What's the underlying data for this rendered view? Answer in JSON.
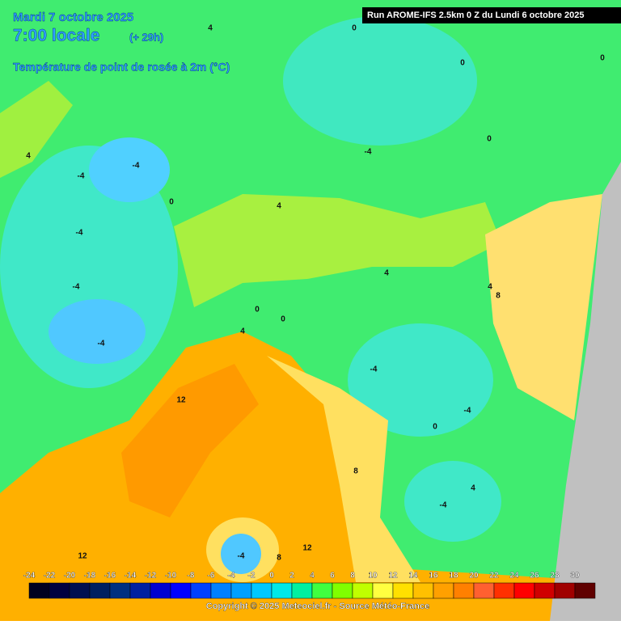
{
  "header": {
    "date": "Mardi 7 octobre 2025",
    "time": "7:00 locale",
    "lead": "(+ 29h)",
    "parameter": "Température de point de rosée à 2m (°C)",
    "run": "Run AROME-IFS 2.5km 0 Z du Lundi 6 octobre 2025"
  },
  "colorbar": {
    "ticks": [
      -24,
      -22,
      -20,
      -18,
      -16,
      -14,
      -12,
      -10,
      -8,
      -6,
      -4,
      -2,
      0,
      2,
      4,
      6,
      8,
      10,
      12,
      14,
      16,
      18,
      20,
      22,
      24,
      26,
      28,
      30
    ],
    "colors": [
      "#000020",
      "#000040",
      "#001050",
      "#002060",
      "#003080",
      "#0020a0",
      "#0000d0",
      "#0000ff",
      "#0040ff",
      "#0080ff",
      "#00a0ff",
      "#00c8ff",
      "#00e8e8",
      "#00f0a0",
      "#40ff40",
      "#80ff00",
      "#c0ff00",
      "#ffff40",
      "#ffe000",
      "#ffc000",
      "#ffa000",
      "#ff8000",
      "#ff6030",
      "#ff3000",
      "#ff0000",
      "#d00000",
      "#a00000",
      "#600000"
    ]
  },
  "contour_labels": [
    4,
    0,
    0,
    0,
    0,
    -4,
    -4,
    -4,
    0,
    4,
    4,
    -4,
    -4,
    -4,
    4,
    4,
    8,
    0,
    0,
    4,
    -4,
    12,
    -4,
    0,
    8,
    4,
    -4,
    12,
    12,
    -4,
    8
  ],
  "copyright": "Copyright © 2025 Meteociel.fr - Source Météo-France"
}
